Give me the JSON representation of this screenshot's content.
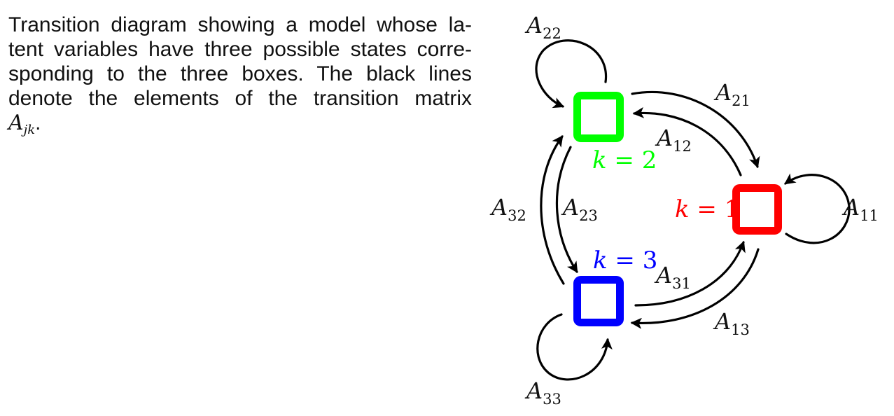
{
  "caption": {
    "line1": "Transition diagram showing a model whose la-",
    "line2": "tent variables have three possible states corre-",
    "line3": "sponding to the three boxes.  The black lines",
    "line4": "denote the elements of the transition matrix",
    "matrix_symbol": "A",
    "matrix_subscript": "jk",
    "end_punct": "."
  },
  "states": {
    "k1": {
      "var": "k",
      "eq": " = 1",
      "color": "#ff0000"
    },
    "k2": {
      "var": "k",
      "eq": " = 2",
      "color": "#00ff00"
    },
    "k3": {
      "var": "k",
      "eq": " = 3",
      "color": "#0000ff"
    }
  },
  "transitions": {
    "A11": {
      "sym": "A",
      "sub": "11"
    },
    "A12": {
      "sym": "A",
      "sub": "12"
    },
    "A13": {
      "sym": "A",
      "sub": "13"
    },
    "A21": {
      "sym": "A",
      "sub": "21"
    },
    "A22": {
      "sym": "A",
      "sub": "22"
    },
    "A23": {
      "sym": "A",
      "sub": "23"
    },
    "A31": {
      "sym": "A",
      "sub": "31"
    },
    "A32": {
      "sym": "A",
      "sub": "32"
    },
    "A33": {
      "sym": "A",
      "sub": "33"
    }
  },
  "colors": {
    "arrow": "#000000"
  }
}
